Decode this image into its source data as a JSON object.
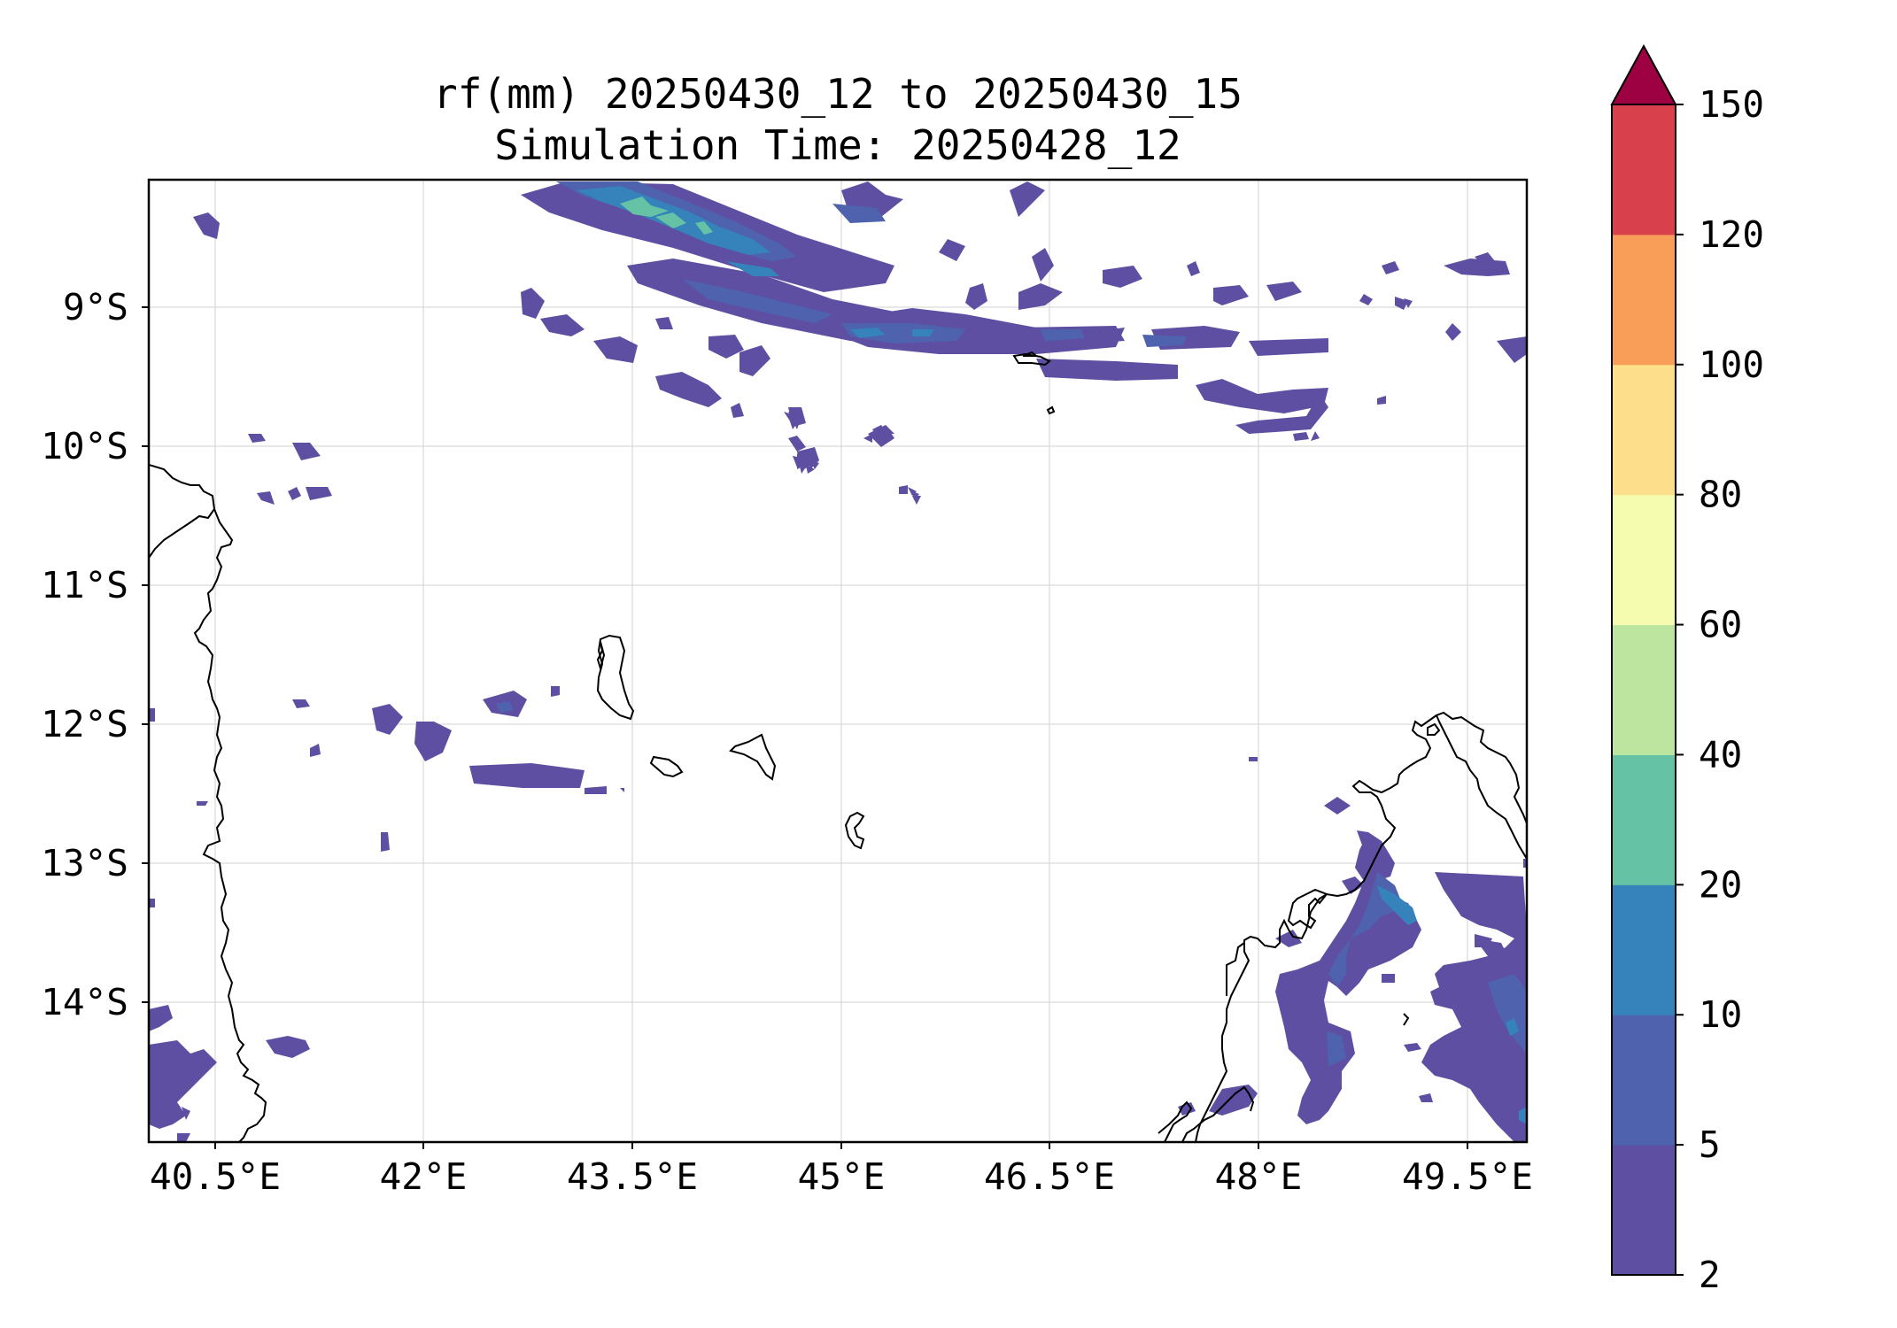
{
  "title_line1": "rf(mm) 20250430_12 to 20250430_15",
  "title_line2": "Simulation Time: 20250428_12",
  "lat_labels": [
    "9°S",
    "10°S",
    "11°S",
    "12°S",
    "13°S",
    "14°S"
  ],
  "lon_labels": [
    "40.5°E",
    "42°E",
    "43.5°E",
    "45°E",
    "46.5°E",
    "48°E",
    "49.5°E"
  ],
  "colorbar": {
    "ticks": [
      "2",
      "5",
      "10",
      "20",
      "40",
      "60",
      "80",
      "100",
      "120",
      "150"
    ],
    "colors": [
      "#5e4fa2",
      "#4f62ae",
      "#3682ba",
      "#66c2a5",
      "#bde5a0",
      "#f5fbaf",
      "#fddf8b",
      "#f99e59",
      "#d8414b",
      "#9e0142"
    ],
    "extend": "max"
  },
  "map_bounds": {
    "lon": [
      40.0,
      49.9
    ],
    "lat": [
      -14.95,
      -8.05
    ]
  }
}
